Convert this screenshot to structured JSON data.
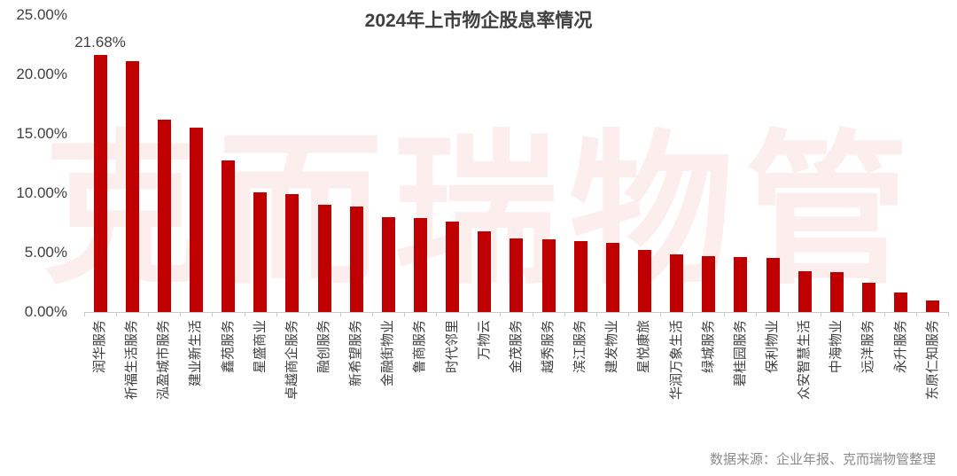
{
  "title": "2024年上市物企股息率情况",
  "source": "数据来源：企业年报、克而瑞物管整理",
  "watermark": "克而瑞物管",
  "colors": {
    "bar": "#C00000",
    "title_text": "#404040",
    "axis_text": "#404040",
    "source_text": "#8c8c8c",
    "axis_line": "#c9c9c9",
    "watermark": "#fbeeed"
  },
  "chart_data": {
    "type": "bar",
    "title": "2024年上市物企股息率情况",
    "xlabel": "",
    "ylabel": "",
    "grid": false,
    "legend": false,
    "ylim": [
      0,
      25
    ],
    "yticks": [
      {
        "label": "25.00%",
        "value": 25
      },
      {
        "label": "20.00%",
        "value": 20
      },
      {
        "label": "15.00%",
        "value": 15
      },
      {
        "label": "10.00%",
        "value": 10
      },
      {
        "label": "5.00%",
        "value": 5
      },
      {
        "label": "0.00%",
        "value": 0
      }
    ],
    "categories": [
      "润华服务",
      "祈福生活服务",
      "泓盈城市服务",
      "建业新生活",
      "鑫苑服务",
      "星盛商业",
      "卓越商企服务",
      "融创服务",
      "新希望服务",
      "金融街物业",
      "鲁商服务",
      "时代邻里",
      "万物云",
      "金茂服务",
      "越秀服务",
      "滨江服务",
      "建发物业",
      "星悦康旅",
      "华润万象生活",
      "绿城服务",
      "碧桂园服务",
      "保利物业",
      "众安智慧生活",
      "中海物业",
      "远洋服务",
      "永升服务",
      "东原仁知服务"
    ],
    "values": [
      21.68,
      21.1,
      16.2,
      15.5,
      12.8,
      10.05,
      9.9,
      9.0,
      8.9,
      8.0,
      7.95,
      7.6,
      6.8,
      6.2,
      6.15,
      5.95,
      5.8,
      5.25,
      4.85,
      4.7,
      4.6,
      4.55,
      3.4,
      3.35,
      2.45,
      1.65,
      0.95
    ],
    "data_labels": {
      "0": "21.68%"
    }
  }
}
